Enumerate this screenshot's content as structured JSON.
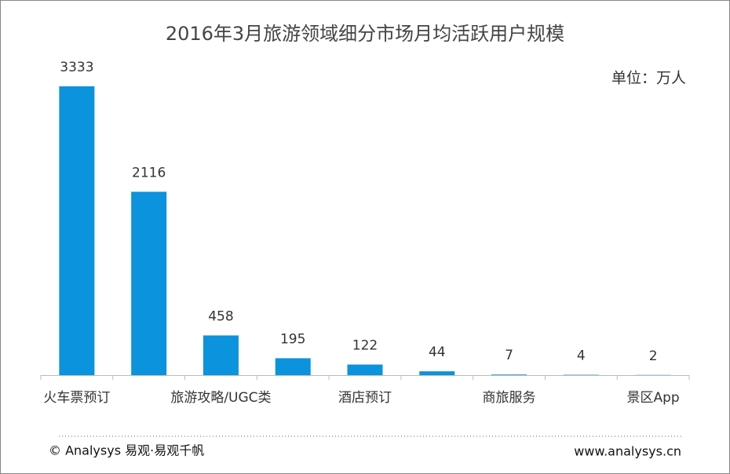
{
  "chart_data": {
    "type": "bar",
    "title": "2016年3月旅游领域细分市场月均活跃用户规模",
    "unit_label": "单位：万人",
    "categories": [
      "火车票预订",
      null,
      "旅游攻略/UGC类",
      null,
      "酒店预订",
      null,
      "商旅服务",
      null,
      "景区App"
    ],
    "values": [
      3333,
      2116,
      458,
      195,
      122,
      44,
      7,
      4,
      2
    ],
    "color": "#0b93dd"
  },
  "footer": {
    "copyright": "© Analysys 易观·易观千帆",
    "website": "www.analysys.cn"
  }
}
